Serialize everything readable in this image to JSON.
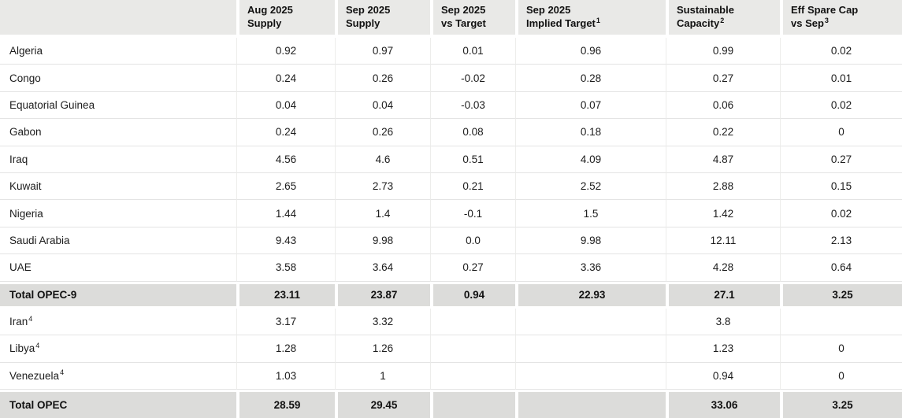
{
  "chart_data": {
    "type": "table",
    "unit_note": "",
    "columns": [
      {
        "lines": [
          "",
          ""
        ],
        "sup": ""
      },
      {
        "lines": [
          "Aug 2025",
          "Supply"
        ],
        "sup": ""
      },
      {
        "lines": [
          "Sep 2025",
          "Supply"
        ],
        "sup": ""
      },
      {
        "lines": [
          "Sep 2025",
          "vs Target"
        ],
        "sup": ""
      },
      {
        "lines": [
          "Sep 2025",
          "Implied Target"
        ],
        "sup": "1"
      },
      {
        "lines": [
          "Sustainable",
          "Capacity"
        ],
        "sup": "2"
      },
      {
        "lines": [
          "Eff Spare Cap",
          "vs Sep"
        ],
        "sup": "3"
      }
    ],
    "rows": [
      {
        "label": "Algeria",
        "sup": "",
        "type": "data",
        "values": [
          "0.92",
          "0.97",
          "0.01",
          "0.96",
          "0.99",
          "0.02"
        ]
      },
      {
        "label": "Congo",
        "sup": "",
        "type": "data",
        "values": [
          "0.24",
          "0.26",
          "-0.02",
          "0.28",
          "0.27",
          "0.01"
        ]
      },
      {
        "label": "Equatorial Guinea",
        "sup": "",
        "type": "data",
        "values": [
          "0.04",
          "0.04",
          "-0.03",
          "0.07",
          "0.06",
          "0.02"
        ]
      },
      {
        "label": "Gabon",
        "sup": "",
        "type": "data",
        "values": [
          "0.24",
          "0.26",
          "0.08",
          "0.18",
          "0.22",
          "0"
        ]
      },
      {
        "label": "Iraq",
        "sup": "",
        "type": "data",
        "values": [
          "4.56",
          "4.6",
          "0.51",
          "4.09",
          "4.87",
          "0.27"
        ]
      },
      {
        "label": "Kuwait",
        "sup": "",
        "type": "data",
        "values": [
          "2.65",
          "2.73",
          "0.21",
          "2.52",
          "2.88",
          "0.15"
        ]
      },
      {
        "label": "Nigeria",
        "sup": "",
        "type": "data",
        "values": [
          "1.44",
          "1.4",
          "-0.1",
          "1.5",
          "1.42",
          "0.02"
        ]
      },
      {
        "label": "Saudi Arabia",
        "sup": "",
        "type": "data",
        "values": [
          "9.43",
          "9.98",
          "0.0",
          "9.98",
          "12.11",
          "2.13"
        ]
      },
      {
        "label": "UAE",
        "sup": "",
        "type": "data",
        "values": [
          "3.58",
          "3.64",
          "0.27",
          "3.36",
          "4.28",
          "0.64"
        ]
      },
      {
        "label": "Total OPEC-9",
        "sup": "",
        "type": "total",
        "values": [
          "23.11",
          "23.87",
          "0.94",
          "22.93",
          "27.1",
          "3.25"
        ]
      },
      {
        "label": "Iran",
        "sup": "4",
        "type": "data",
        "values": [
          "3.17",
          "3.32",
          "",
          "",
          "3.8",
          ""
        ]
      },
      {
        "label": "Libya",
        "sup": "4",
        "type": "data",
        "values": [
          "1.28",
          "1.26",
          "",
          "",
          "1.23",
          "0"
        ]
      },
      {
        "label": "Venezuela",
        "sup": "4",
        "type": "data",
        "values": [
          "1.03",
          "1",
          "",
          "",
          "0.94",
          "0"
        ]
      },
      {
        "label": "Total OPEC",
        "sup": "",
        "type": "total",
        "values": [
          "28.59",
          "29.45",
          "",
          "",
          "33.06",
          "3.25"
        ]
      }
    ]
  },
  "colors": {
    "header_bg": "#e9e9e7",
    "total_bg": "#dcdcda",
    "row_line": "#e4e4e4",
    "col_line": "#ededeb",
    "text": "#1c1c1c"
  }
}
